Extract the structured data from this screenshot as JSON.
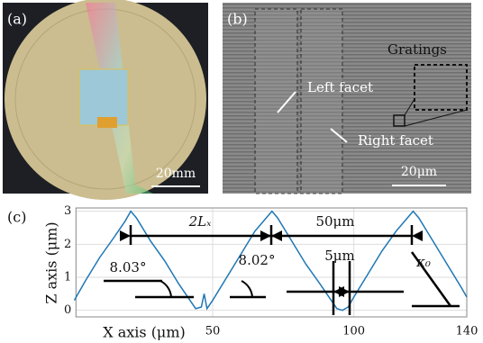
{
  "panels": [
    {
      "label": "(a)",
      "scale_bar": "20mm"
    },
    {
      "label": "(b)",
      "annotations": [
        "Gratings",
        "Left facet",
        "Right facet"
      ],
      "scale_bar": "20μm"
    }
  ],
  "chart_data": {
    "type": "line",
    "label": "(c)",
    "x_label": "X axis (μm)",
    "y_label": "Z axis (μm)",
    "x": [
      1,
      5,
      10,
      15,
      19,
      21,
      23,
      28,
      33,
      38,
      42,
      44,
      46,
      47,
      48,
      50,
      55,
      60,
      65,
      69,
      71,
      73,
      78,
      83,
      88,
      92,
      94,
      96,
      98,
      100,
      105,
      110,
      115,
      119,
      121,
      123,
      128,
      133,
      138,
      140
    ],
    "series": [
      {
        "color": "#1f77b4",
        "values": [
          0.3,
          0.9,
          1.6,
          2.2,
          2.7,
          3.0,
          2.8,
          2.1,
          1.5,
          0.8,
          0.3,
          0.05,
          0.1,
          0.5,
          0.05,
          0.3,
          1.0,
          1.7,
          2.4,
          2.8,
          3.0,
          2.8,
          2.1,
          1.4,
          0.8,
          0.3,
          0.05,
          0.0,
          0.1,
          0.4,
          1.1,
          1.8,
          2.4,
          2.8,
          3.0,
          2.8,
          2.1,
          1.4,
          0.7,
          0.4
        ]
      }
    ],
    "xlim": [
      0,
      140
    ],
    "xticks": [
      50,
      100,
      140
    ],
    "ylim": [
      -0.2,
      3.1
    ],
    "yticks": [
      0,
      1,
      2,
      3
    ],
    "grid": true,
    "annotations": [
      "2Lₓ",
      "50μm",
      "5μm",
      "8.03°",
      "8.02°",
      "κ₀"
    ]
  }
}
